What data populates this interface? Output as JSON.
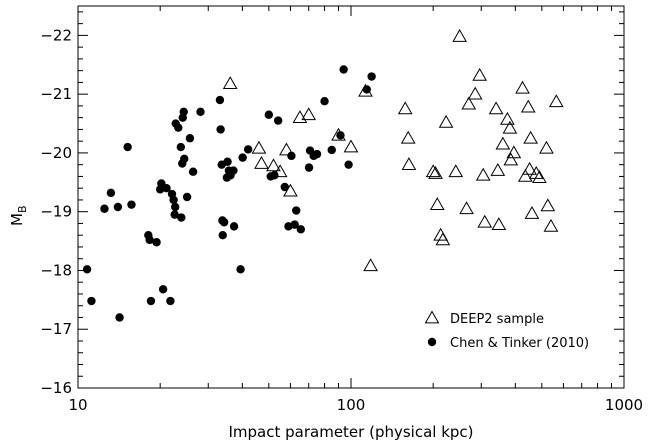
{
  "chart_data": {
    "type": "scatter",
    "xlabel": "Impact parameter (physical kpc)",
    "ylabel": "M",
    "ylabel_sub": "B",
    "xscale": "log",
    "xlim": [
      10,
      1000
    ],
    "ylim": [
      -16,
      -22.5
    ],
    "y_inverted": true,
    "grid": false,
    "legend_position": "bottom-right",
    "x_ticks": [
      10,
      100,
      1000
    ],
    "x_tick_labels": [
      "10",
      "100",
      "1000"
    ],
    "y_ticks": [
      -16,
      -17,
      -18,
      -19,
      -20,
      -21,
      -22
    ],
    "y_tick_labels": [
      "−16",
      "−17",
      "−18",
      "−19",
      "−20",
      "−21",
      "−22"
    ],
    "series": [
      {
        "name": "DEEP2 sample",
        "marker": "open-triangle",
        "points": [
          [
            36.1,
            -21.18
          ],
          [
            46,
            -20.08
          ],
          [
            47,
            -19.82
          ],
          [
            52,
            -19.78
          ],
          [
            55,
            -19.68
          ],
          [
            58,
            -20.05
          ],
          [
            60,
            -19.35
          ],
          [
            65,
            -20.6
          ],
          [
            70,
            -20.65
          ],
          [
            90,
            -20.3
          ],
          [
            100,
            -20.1
          ],
          [
            113,
            -21.05
          ],
          [
            118,
            -18.08
          ],
          [
            158,
            -20.75
          ],
          [
            162,
            -20.25
          ],
          [
            163,
            -19.8
          ],
          [
            200,
            -19.68
          ],
          [
            204,
            -19.65
          ],
          [
            207,
            -19.12
          ],
          [
            213,
            -18.6
          ],
          [
            217,
            -18.52
          ],
          [
            223,
            -20.52
          ],
          [
            242,
            -19.68
          ],
          [
            250,
            -21.98
          ],
          [
            265,
            -19.05
          ],
          [
            270,
            -20.83
          ],
          [
            285,
            -21.0
          ],
          [
            296,
            -21.32
          ],
          [
            305,
            -19.62
          ],
          [
            309,
            -18.82
          ],
          [
            340,
            -20.75
          ],
          [
            345,
            -19.7
          ],
          [
            348,
            -18.78
          ],
          [
            360,
            -20.15
          ],
          [
            374,
            -20.57
          ],
          [
            382,
            -20.42
          ],
          [
            385,
            -19.88
          ],
          [
            395,
            -20.0
          ],
          [
            425,
            -21.1
          ],
          [
            435,
            -19.6
          ],
          [
            446,
            -20.78
          ],
          [
            451,
            -19.72
          ],
          [
            455,
            -20.25
          ],
          [
            460,
            -18.97
          ],
          [
            477,
            -19.65
          ],
          [
            490,
            -19.58
          ],
          [
            520,
            -20.08
          ],
          [
            526,
            -19.1
          ],
          [
            540,
            -18.75
          ],
          [
            565,
            -20.87
          ]
        ]
      },
      {
        "name": "Chen & Tinker (2010)",
        "marker": "filled-circle",
        "points": [
          [
            10.8,
            -18.02
          ],
          [
            11.2,
            -17.48
          ],
          [
            12.5,
            -19.05
          ],
          [
            13.2,
            -19.32
          ],
          [
            14.0,
            -19.08
          ],
          [
            14.2,
            -17.2
          ],
          [
            15.2,
            -20.1
          ],
          [
            15.7,
            -19.12
          ],
          [
            18.1,
            -18.6
          ],
          [
            18.3,
            -18.52
          ],
          [
            18.5,
            -17.48
          ],
          [
            19.4,
            -18.48
          ],
          [
            20.0,
            -19.38
          ],
          [
            20.2,
            -19.48
          ],
          [
            20.5,
            -17.68
          ],
          [
            21.1,
            -19.4
          ],
          [
            21.8,
            -17.48
          ],
          [
            22.1,
            -19.3
          ],
          [
            22.4,
            -19.2
          ],
          [
            22.6,
            -18.95
          ],
          [
            22.7,
            -19.08
          ],
          [
            22.8,
            -20.5
          ],
          [
            23.3,
            -20.43
          ],
          [
            23.8,
            -20.1
          ],
          [
            23.9,
            -18.9
          ],
          [
            24.1,
            -19.82
          ],
          [
            24.2,
            -20.6
          ],
          [
            24.4,
            -20.7
          ],
          [
            24.5,
            -19.9
          ],
          [
            25.1,
            -19.25
          ],
          [
            25.7,
            -20.25
          ],
          [
            26.4,
            -19.68
          ],
          [
            28.1,
            -20.7
          ],
          [
            33.1,
            -20.9
          ],
          [
            33.3,
            -20.4
          ],
          [
            33.6,
            -19.8
          ],
          [
            33.8,
            -18.85
          ],
          [
            33.9,
            -18.6
          ],
          [
            34.3,
            -18.82
          ],
          [
            35.1,
            -19.58
          ],
          [
            35.3,
            -19.85
          ],
          [
            35.7,
            -19.7
          ],
          [
            36.2,
            -19.62
          ],
          [
            37.1,
            -19.7
          ],
          [
            37.3,
            -18.75
          ],
          [
            39.4,
            -18.02
          ],
          [
            40.1,
            -19.92
          ],
          [
            42.0,
            -20.06
          ],
          [
            50.0,
            -20.65
          ],
          [
            50.8,
            -19.6
          ],
          [
            52.4,
            -19.62
          ],
          [
            54.1,
            -20.55
          ],
          [
            57.2,
            -19.42
          ],
          [
            59.0,
            -18.75
          ],
          [
            60.5,
            -19.95
          ],
          [
            62.2,
            -18.78
          ],
          [
            63.0,
            -19.02
          ],
          [
            65.5,
            -18.7
          ],
          [
            70.2,
            -19.75
          ],
          [
            70.8,
            -20.04
          ],
          [
            73.0,
            -19.95
          ],
          [
            75.1,
            -19.98
          ],
          [
            80.0,
            -20.88
          ],
          [
            85.0,
            -20.05
          ],
          [
            91.5,
            -20.3
          ],
          [
            94.0,
            -21.42
          ],
          [
            98.0,
            -19.8
          ],
          [
            114.2,
            -21.08
          ],
          [
            119.0,
            -21.3
          ]
        ]
      }
    ]
  }
}
